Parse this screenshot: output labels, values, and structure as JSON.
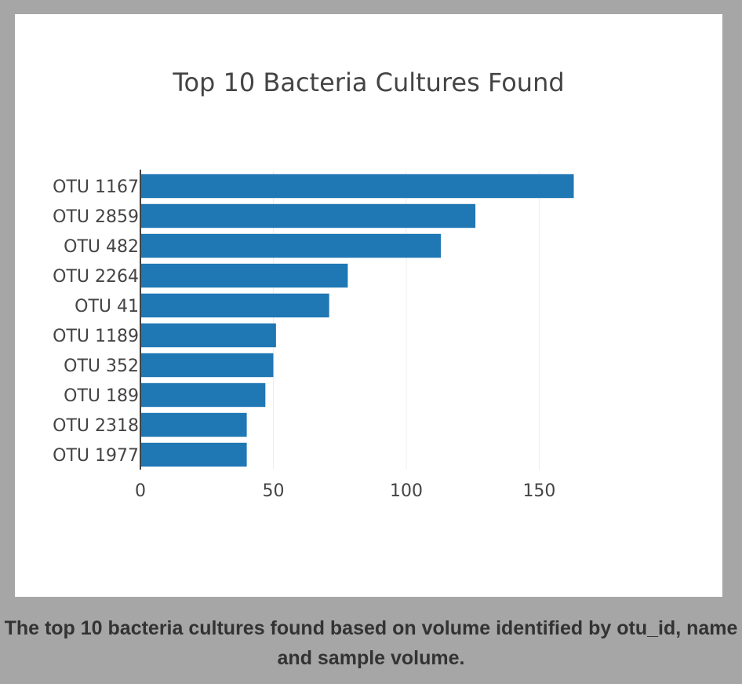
{
  "caption": "The top 10 bacteria cultures found based on volume identified by otu_id, name and sample volume.",
  "colors": {
    "bar": "#1f77b4",
    "grid": "#eeeeee",
    "text": "#444444",
    "axis": "#444444"
  },
  "chart_data": {
    "type": "bar",
    "orientation": "horizontal",
    "title": "Top 10 Bacteria Cultures Found",
    "xlabel": "",
    "ylabel": "",
    "categories": [
      "OTU 1167",
      "OTU 2859",
      "OTU 482",
      "OTU 2264",
      "OTU 41",
      "OTU 1189",
      "OTU 352",
      "OTU 189",
      "OTU 2318",
      "OTU 1977"
    ],
    "values": [
      163,
      126,
      113,
      78,
      71,
      51,
      50,
      47,
      40,
      40
    ],
    "xlim": [
      0,
      213
    ],
    "xticks": [
      0,
      50,
      100,
      150
    ],
    "grid": true,
    "legend": "none"
  }
}
